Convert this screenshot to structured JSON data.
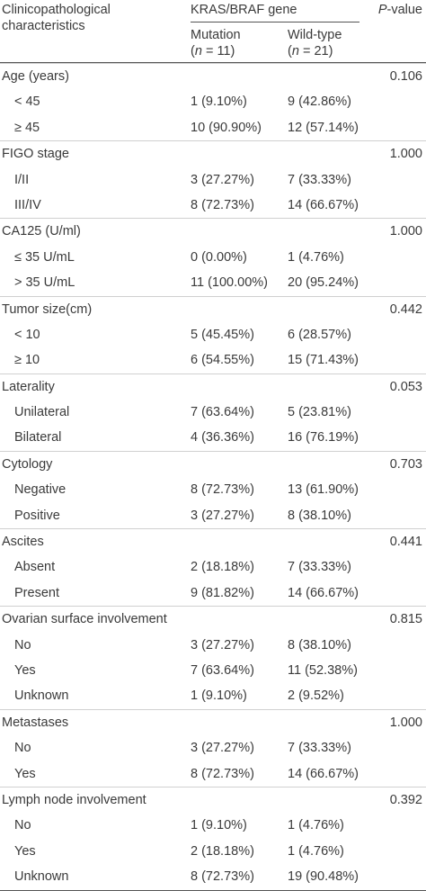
{
  "header": {
    "col1_line1": "Clinicopathological",
    "col1_line2": "characteristics",
    "gene": "KRAS/BRAF gene",
    "mutation_label": "Mutation",
    "mutation_n_pre": "(",
    "mutation_n_var": "n",
    "mutation_n_post": " = 11)",
    "wild_label": "Wild-type",
    "wild_n_pre": "(",
    "wild_n_var": "n",
    "wild_n_post": " = 21)",
    "p_italic": "P",
    "p_rest": "-value"
  },
  "groups": [
    {
      "label": "Age (years)",
      "p": "0.106",
      "rows": [
        {
          "label": "< 45",
          "mut": "1 (9.10%)",
          "wt": "9 (42.86%)"
        },
        {
          "label": "≥ 45",
          "mut": "10 (90.90%)",
          "wt": "12 (57.14%)"
        }
      ]
    },
    {
      "label": "FIGO stage",
      "p": "1.000",
      "rows": [
        {
          "label": "I/II",
          "mut": "3 (27.27%)",
          "wt": "7 (33.33%)"
        },
        {
          "label": "III/IV",
          "mut": "8 (72.73%)",
          "wt": "14 (66.67%)"
        }
      ]
    },
    {
      "label": "CA125 (U/ml)",
      "p": "1.000",
      "rows": [
        {
          "label": "≤ 35 U/mL",
          "mut": "0 (0.00%)",
          "wt": "1 (4.76%)"
        },
        {
          "label": "> 35 U/mL",
          "mut": "11 (100.00%)",
          "wt": "20 (95.24%)"
        }
      ]
    },
    {
      "label": "Tumor size(cm)",
      "p": "0.442",
      "rows": [
        {
          "label": "< 10",
          "mut": "5 (45.45%)",
          "wt": "6 (28.57%)"
        },
        {
          "label": "≥ 10",
          "mut": "6 (54.55%)",
          "wt": "15 (71.43%)"
        }
      ]
    },
    {
      "label": "Laterality",
      "p": "0.053",
      "rows": [
        {
          "label": "Unilateral",
          "mut": "7 (63.64%)",
          "wt": "5 (23.81%)"
        },
        {
          "label": "Bilateral",
          "mut": "4 (36.36%)",
          "wt": "16 (76.19%)"
        }
      ]
    },
    {
      "label": "Cytology",
      "p": "0.703",
      "rows": [
        {
          "label": "Negative",
          "mut": "8 (72.73%)",
          "wt": "13 (61.90%)"
        },
        {
          "label": "Positive",
          "mut": "3 (27.27%)",
          "wt": "8 (38.10%)"
        }
      ]
    },
    {
      "label": "Ascites",
      "p": "0.441",
      "rows": [
        {
          "label": "Absent",
          "mut": "2 (18.18%)",
          "wt": "7 (33.33%)"
        },
        {
          "label": "Present",
          "mut": "9 (81.82%)",
          "wt": "14 (66.67%)"
        }
      ]
    },
    {
      "label": "Ovarian surface involvement",
      "p": "0.815",
      "rows": [
        {
          "label": "No",
          "mut": "3 (27.27%)",
          "wt": "8 (38.10%)"
        },
        {
          "label": "Yes",
          "mut": "7 (63.64%)",
          "wt": "11 (52.38%)"
        },
        {
          "label": "Unknown",
          "mut": "1 (9.10%)",
          "wt": "2 (9.52%)"
        }
      ]
    },
    {
      "label": "Metastases",
      "p": "1.000",
      "rows": [
        {
          "label": "No",
          "mut": "3 (27.27%)",
          "wt": "7 (33.33%)"
        },
        {
          "label": "Yes",
          "mut": "8 (72.73%)",
          "wt": "14 (66.67%)"
        }
      ]
    },
    {
      "label": "Lymph node involvement",
      "p": "0.392",
      "rows": [
        {
          "label": "No",
          "mut": "1 (9.10%)",
          "wt": "1 (4.76%)"
        },
        {
          "label": "Yes",
          "mut": "2 (18.18%)",
          "wt": "1 (4.76%)"
        },
        {
          "label": "Unknown",
          "mut": "8 (72.73%)",
          "wt": "19 (90.48%)"
        }
      ]
    }
  ]
}
